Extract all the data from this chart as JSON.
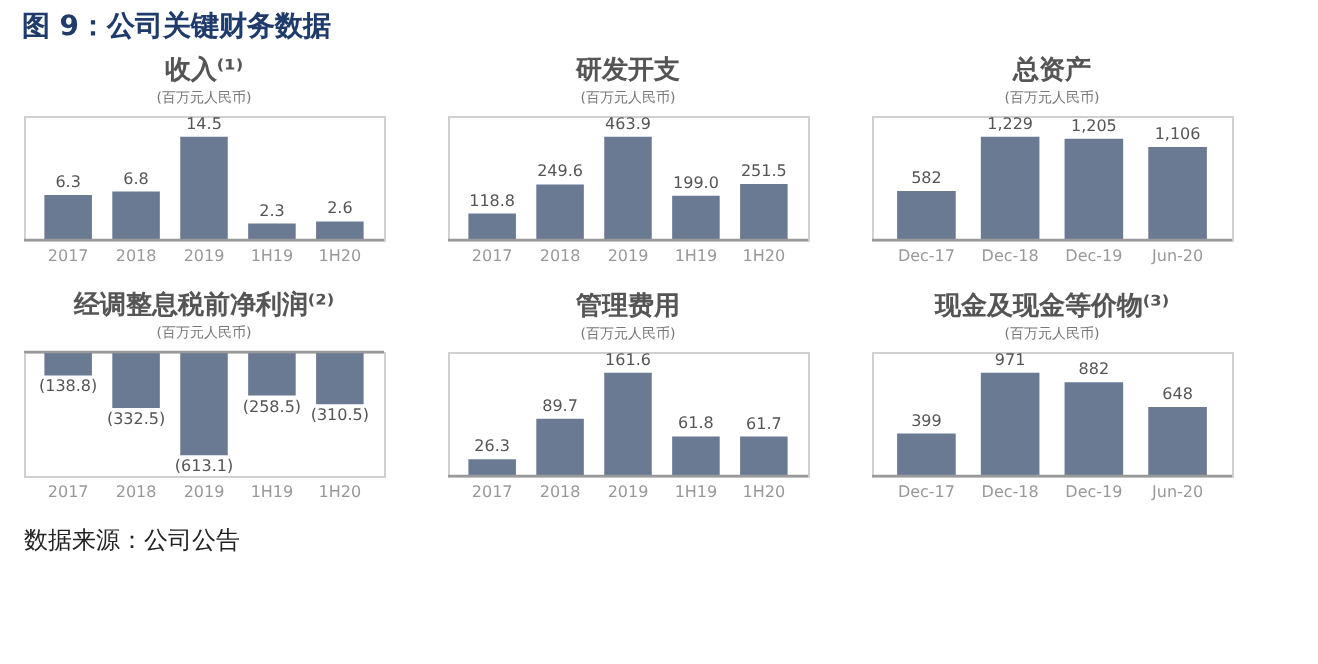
{
  "chart_data": [
    {
      "type": "bar",
      "title": "收入⁽¹⁾",
      "subtitle": "(百万元人民币)",
      "annotations": [
        "图 9：公司关键财务数据"
      ],
      "categories": [
        "2017",
        "2018",
        "2019",
        "1H19",
        "1H20"
      ],
      "values": [
        6.3,
        6.8,
        14.5,
        2.3,
        2.6
      ],
      "value_labels": [
        "6.3",
        "6.8",
        "14.5",
        "2.3",
        "2.6"
      ],
      "color": "#6b7a93"
    },
    {
      "type": "bar",
      "title": "研发开支",
      "subtitle": "(百万元人民币)",
      "categories": [
        "2017",
        "2018",
        "2019",
        "1H19",
        "1H20"
      ],
      "values": [
        118.8,
        249.6,
        463.9,
        199.0,
        251.5
      ],
      "value_labels": [
        "118.8",
        "249.6",
        "463.9",
        "199.0",
        "251.5"
      ],
      "color": "#6b7a93"
    },
    {
      "type": "bar",
      "title": "总资产",
      "subtitle": "(百万元人民币)",
      "categories": [
        "Dec-17",
        "Dec-18",
        "Dec-19",
        "Jun-20"
      ],
      "values": [
        582,
        1229,
        1205,
        1106
      ],
      "value_labels": [
        "582",
        "1,229",
        "1,205",
        "1,106"
      ],
      "color": "#6b7a93"
    },
    {
      "type": "bar",
      "title": "经调整息税前净利润⁽²⁾",
      "subtitle": "(百万元人民币)",
      "categories": [
        "2017",
        "2018",
        "2019",
        "1H19",
        "1H20"
      ],
      "values": [
        -138.8,
        -332.5,
        -613.1,
        -258.5,
        -310.5
      ],
      "value_labels": [
        "(138.8)",
        "(332.5)",
        "(613.1)",
        "(258.5)",
        "(310.5)"
      ],
      "color": "#6b7a93"
    },
    {
      "type": "bar",
      "title": "管理费用",
      "subtitle": "(百万元人民币)",
      "categories": [
        "2017",
        "2018",
        "2019",
        "1H19",
        "1H20"
      ],
      "values": [
        26.3,
        89.7,
        161.6,
        61.8,
        61.7
      ],
      "value_labels": [
        "26.3",
        "89.7",
        "161.6",
        "61.8",
        "61.7"
      ],
      "color": "#6b7a93"
    },
    {
      "type": "bar",
      "title": "现金及现金等价物⁽³⁾",
      "subtitle": "(百万元人民币)",
      "annotations": [
        "数据来源：公司公告"
      ],
      "categories": [
        "Dec-17",
        "Dec-18",
        "Dec-19",
        "Jun-20"
      ],
      "values": [
        399,
        971,
        882,
        648
      ],
      "value_labels": [
        "399",
        "971",
        "882",
        "648"
      ],
      "color": "#6b7a93"
    }
  ]
}
